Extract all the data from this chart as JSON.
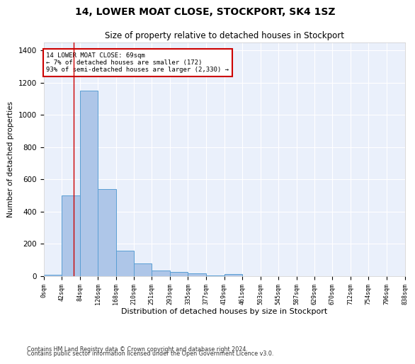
{
  "title": "14, LOWER MOAT CLOSE, STOCKPORT, SK4 1SZ",
  "subtitle": "Size of property relative to detached houses in Stockport",
  "xlabel": "Distribution of detached houses by size in Stockport",
  "ylabel": "Number of detached properties",
  "bar_color": "#aec6e8",
  "bar_edge_color": "#5a9fd4",
  "background_color": "#ffffff",
  "plot_bg_color": "#eaf0fb",
  "grid_color": "#ffffff",
  "annotation_box_color": "#cc0000",
  "vline_color": "#cc0000",
  "vline_x": 69,
  "annotation_lines": [
    "14 LOWER MOAT CLOSE: 69sqm",
    "← 7% of detached houses are smaller (172)",
    "93% of semi-detached houses are larger (2,330) →"
  ],
  "bin_edges": [
    0,
    42,
    84,
    126,
    168,
    210,
    251,
    293,
    335,
    377,
    419,
    461,
    503,
    545,
    587,
    629,
    670,
    712,
    754,
    796,
    838
  ],
  "bar_heights": [
    10,
    500,
    1150,
    540,
    160,
    80,
    35,
    25,
    18,
    5,
    15,
    0,
    0,
    0,
    0,
    0,
    0,
    0,
    0,
    0
  ],
  "ylim": [
    0,
    1450
  ],
  "yticks": [
    0,
    200,
    400,
    600,
    800,
    1000,
    1200,
    1400
  ],
  "footer_lines": [
    "Contains HM Land Registry data © Crown copyright and database right 2024.",
    "Contains public sector information licensed under the Open Government Licence v3.0."
  ]
}
